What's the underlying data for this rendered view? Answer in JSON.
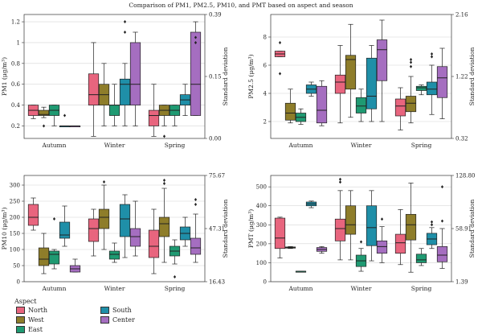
{
  "title": "Comparison of PM1, PM2.5, PM10, and PMT based on aspect and season",
  "legend": {
    "title": "Aspect",
    "items": [
      {
        "name": "North",
        "color": "#e8657e"
      },
      {
        "name": "West",
        "color": "#8e7d2a"
      },
      {
        "name": "East",
        "color": "#1f9a72"
      },
      {
        "name": "South",
        "color": "#1f8fa8"
      },
      {
        "name": "Center",
        "color": "#a56ec0"
      }
    ]
  },
  "chart_data": [
    {
      "type": "box",
      "ylabel": "PM1 (μg/m³)",
      "y2label": "Standard deviation",
      "ylim": [
        0.08,
        1.27
      ],
      "yticks": [
        0.2,
        0.4,
        0.6,
        0.8,
        1.0,
        1.2
      ],
      "y2ticks": [
        "0.39",
        "0.15",
        "0.00"
      ],
      "categories": [
        "Autumn",
        "Winter",
        "Spring"
      ],
      "series": [
        {
          "name": "North",
          "boxes": [
            {
              "whislo": 0.27,
              "q1": 0.3,
              "med": 0.35,
              "q3": 0.4,
              "whishi": 0.4,
              "fliers": []
            },
            {
              "whislo": 0.1,
              "q1": 0.4,
              "med": 0.5,
              "q3": 0.7,
              "whishi": 1.0,
              "fliers": []
            },
            {
              "whislo": 0.1,
              "q1": 0.2,
              "med": 0.3,
              "q3": 0.35,
              "whishi": 0.6,
              "fliers": []
            }
          ]
        },
        {
          "name": "West",
          "boxes": [
            {
              "whislo": 0.28,
              "q1": 0.3,
              "med": 0.31,
              "q3": 0.35,
              "whishi": 0.38,
              "fliers": [
                0.2
              ]
            },
            {
              "whislo": 0.2,
              "q1": 0.4,
              "med": 0.5,
              "q3": 0.6,
              "whishi": 0.8,
              "fliers": []
            },
            {
              "whislo": 0.2,
              "q1": 0.3,
              "med": 0.35,
              "q3": 0.4,
              "whishi": 0.4,
              "fliers": [
                0.1
              ]
            }
          ]
        },
        {
          "name": "East",
          "boxes": [
            {
              "whislo": 0.2,
              "q1": 0.3,
              "med": 0.35,
              "q3": 0.4,
              "whishi": 0.4,
              "fliers": []
            },
            {
              "whislo": 0.2,
              "q1": 0.3,
              "med": 0.4,
              "q3": 0.4,
              "whishi": 0.6,
              "fliers": []
            },
            {
              "whislo": 0.2,
              "q1": 0.3,
              "med": 0.35,
              "q3": 0.4,
              "whishi": 0.4,
              "fliers": []
            }
          ]
        },
        {
          "name": "South",
          "boxes": [
            {
              "whislo": 0.2,
              "q1": 0.2,
              "med": 0.2,
              "q3": 0.2,
              "whishi": 0.2,
              "fliers": [
                0.3
              ]
            },
            {
              "whislo": 0.2,
              "q1": 0.4,
              "med": 0.6,
              "q3": 0.65,
              "whishi": 0.8,
              "fliers": [
                1.1,
                1.2
              ]
            },
            {
              "whislo": 0.3,
              "q1": 0.4,
              "med": 0.45,
              "q3": 0.5,
              "whishi": 0.6,
              "fliers": []
            }
          ]
        },
        {
          "name": "Center",
          "boxes": [
            {
              "whislo": 0.2,
              "q1": 0.2,
              "med": 0.2,
              "q3": 0.2,
              "whishi": 0.2,
              "fliers": []
            },
            {
              "whislo": 0.2,
              "q1": 0.4,
              "med": 0.6,
              "q3": 1.0,
              "whishi": 1.1,
              "fliers": []
            },
            {
              "whislo": 0.3,
              "q1": 0.3,
              "med": 0.6,
              "q3": 1.1,
              "whishi": 1.2,
              "fliers": [
                1.0,
                1.05
              ]
            }
          ]
        }
      ]
    },
    {
      "type": "box",
      "ylabel": "PM2.5 (μg/m³)",
      "y2label": "Standard deviation",
      "ylim": [
        0.8,
        9.6
      ],
      "yticks": [
        2,
        4,
        6,
        8
      ],
      "y2ticks": [
        "2.16",
        "1.22",
        "0.32"
      ],
      "categories": [
        "Autumn",
        "Winter",
        "Spring"
      ],
      "series": [
        {
          "name": "North",
          "boxes": [
            {
              "whislo": 6.6,
              "q1": 6.6,
              "med": 6.8,
              "q3": 7.0,
              "whishi": 7.0,
              "fliers": [
                7.6,
                5.4
              ]
            },
            {
              "whislo": 1.9,
              "q1": 4.0,
              "med": 4.8,
              "q3": 5.3,
              "whishi": 7.4,
              "fliers": []
            },
            {
              "whislo": 1.4,
              "q1": 2.4,
              "med": 3.1,
              "q3": 3.6,
              "whishi": 4.4,
              "fliers": []
            }
          ]
        },
        {
          "name": "West",
          "boxes": [
            {
              "whislo": 1.9,
              "q1": 2.1,
              "med": 2.6,
              "q3": 3.3,
              "whishi": 4.3,
              "fliers": []
            },
            {
              "whislo": 2.3,
              "q1": 4.3,
              "med": 6.4,
              "q3": 6.7,
              "whishi": 8.9,
              "fliers": []
            },
            {
              "whislo": 1.9,
              "q1": 2.7,
              "med": 3.3,
              "q3": 3.8,
              "whishi": 5.2,
              "fliers": [
                5.9,
                6.2,
                6.4
              ]
            }
          ]
        },
        {
          "name": "East",
          "boxes": [
            {
              "whislo": 1.8,
              "q1": 2.0,
              "med": 2.3,
              "q3": 2.6,
              "whishi": 2.9,
              "fliers": []
            },
            {
              "whislo": 2.0,
              "q1": 2.6,
              "med": 3.1,
              "q3": 3.7,
              "whishi": 4.3,
              "fliers": []
            },
            {
              "whislo": 3.9,
              "q1": 4.2,
              "med": 4.4,
              "q3": 4.5,
              "whishi": 4.6,
              "fliers": []
            }
          ]
        },
        {
          "name": "South",
          "boxes": [
            {
              "whislo": 3.8,
              "q1": 4.0,
              "med": 4.3,
              "q3": 4.6,
              "whishi": 4.8,
              "fliers": []
            },
            {
              "whislo": 2.0,
              "q1": 2.9,
              "med": 3.8,
              "q3": 6.5,
              "whishi": 7.4,
              "fliers": []
            },
            {
              "whislo": 2.5,
              "q1": 3.9,
              "med": 4.3,
              "q3": 4.8,
              "whishi": 6.0,
              "fliers": [
                6.6,
                6.8
              ]
            }
          ]
        },
        {
          "name": "Center",
          "boxes": [
            {
              "whislo": 1.7,
              "q1": 1.9,
              "med": 2.8,
              "q3": 4.5,
              "whishi": 4.9,
              "fliers": []
            },
            {
              "whislo": 2.0,
              "q1": 4.9,
              "med": 7.1,
              "q3": 7.8,
              "whishi": 9.2,
              "fliers": []
            },
            {
              "whislo": 2.2,
              "q1": 3.7,
              "med": 5.1,
              "q3": 5.9,
              "whishi": 7.2,
              "fliers": []
            }
          ]
        }
      ]
    },
    {
      "type": "box",
      "ylabel": "PM10 (μg/m³)",
      "y2label": "Standard deviation",
      "ylim": [
        0,
        330
      ],
      "yticks": [
        0,
        50,
        100,
        150,
        200,
        250,
        300
      ],
      "y2ticks": [
        "75.67",
        "47.31",
        "16.43"
      ],
      "categories": [
        "Autumn",
        "Winter",
        "Spring"
      ],
      "series": [
        {
          "name": "North",
          "boxes": [
            {
              "whislo": 160,
              "q1": 175,
              "med": 200,
              "q3": 240,
              "whishi": 260,
              "fliers": []
            },
            {
              "whislo": 80,
              "q1": 125,
              "med": 165,
              "q3": 195,
              "whishi": 225,
              "fliers": []
            },
            {
              "whislo": 25,
              "q1": 75,
              "med": 110,
              "q3": 160,
              "whishi": 225,
              "fliers": []
            }
          ]
        },
        {
          "name": "West",
          "boxes": [
            {
              "whislo": 25,
              "q1": 50,
              "med": 70,
              "q3": 105,
              "whishi": 150,
              "fliers": []
            },
            {
              "whislo": 100,
              "q1": 165,
              "med": 200,
              "q3": 225,
              "whishi": 300,
              "fliers": [
                310
              ]
            },
            {
              "whislo": 60,
              "q1": 140,
              "med": 180,
              "q3": 200,
              "whishi": 290,
              "fliers": [
                305,
                315
              ]
            }
          ]
        },
        {
          "name": "East",
          "boxes": [
            {
              "whislo": 40,
              "q1": 55,
              "med": 85,
              "q3": 95,
              "whishi": 100,
              "fliers": [
                195
              ]
            },
            {
              "whislo": 60,
              "q1": 70,
              "med": 85,
              "q3": 95,
              "whishi": 120,
              "fliers": []
            },
            {
              "whislo": 55,
              "q1": 80,
              "med": 95,
              "q3": 110,
              "whishi": 130,
              "fliers": [
                15
              ]
            }
          ]
        },
        {
          "name": "South",
          "boxes": [
            {
              "whislo": 110,
              "q1": 135,
              "med": 145,
              "q3": 185,
              "whishi": 235,
              "fliers": []
            },
            {
              "whislo": 75,
              "q1": 140,
              "med": 195,
              "q3": 240,
              "whishi": 270,
              "fliers": []
            },
            {
              "whislo": 110,
              "q1": 130,
              "med": 150,
              "q3": 170,
              "whishi": 200,
              "fliers": []
            }
          ]
        },
        {
          "name": "Center",
          "boxes": [
            {
              "whislo": 30,
              "q1": 30,
              "med": 40,
              "q3": 50,
              "whishi": 70,
              "fliers": []
            },
            {
              "whislo": 80,
              "q1": 110,
              "med": 140,
              "q3": 165,
              "whishi": 250,
              "fliers": []
            },
            {
              "whislo": 60,
              "q1": 85,
              "med": 105,
              "q3": 135,
              "whishi": 210,
              "fliers": [
                240,
                255
              ]
            }
          ]
        }
      ]
    },
    {
      "type": "box",
      "ylabel": "PMT (μg/m³)",
      "y2label": "Standard deviation",
      "ylim": [
        0,
        560
      ],
      "yticks": [
        0,
        100,
        200,
        300,
        400,
        500
      ],
      "y2ticks": [
        "128.80",
        "58.91",
        "1.39"
      ],
      "categories": [
        "Autumn",
        "Winter",
        "Spring"
      ],
      "series": [
        {
          "name": "North",
          "boxes": [
            {
              "whislo": 125,
              "q1": 175,
              "med": 230,
              "q3": 335,
              "whishi": 340,
              "fliers": []
            },
            {
              "whislo": 115,
              "q1": 215,
              "med": 280,
              "q3": 330,
              "whishi": 480,
              "fliers": [
                525,
                540
              ]
            },
            {
              "whislo": 90,
              "q1": 150,
              "med": 205,
              "q3": 250,
              "whishi": 380,
              "fliers": []
            }
          ]
        },
        {
          "name": "West",
          "boxes": [
            {
              "whislo": 175,
              "q1": 177,
              "med": 180,
              "q3": 183,
              "whishi": 185,
              "fliers": []
            },
            {
              "whislo": 115,
              "q1": 250,
              "med": 300,
              "q3": 400,
              "whishi": 480,
              "fliers": []
            },
            {
              "whislo": 50,
              "q1": 220,
              "med": 300,
              "q3": 355,
              "whishi": 520,
              "fliers": []
            }
          ]
        },
        {
          "name": "East",
          "boxes": [
            {
              "whislo": 55,
              "q1": 55,
              "med": 55,
              "q3": 55,
              "whishi": 55,
              "fliers": []
            },
            {
              "whislo": 55,
              "q1": 80,
              "med": 110,
              "q3": 140,
              "whishi": 175,
              "fliers": [
                210
              ]
            },
            {
              "whislo": 85,
              "q1": 100,
              "med": 115,
              "q3": 145,
              "whishi": 175,
              "fliers": []
            }
          ]
        },
        {
          "name": "South",
          "boxes": [
            {
              "whislo": 390,
              "q1": 400,
              "med": 410,
              "q3": 420,
              "whishi": 425,
              "fliers": []
            },
            {
              "whislo": 110,
              "q1": 190,
              "med": 285,
              "q3": 400,
              "whishi": 480,
              "fliers": []
            },
            {
              "whislo": 175,
              "q1": 195,
              "med": 225,
              "q3": 255,
              "whishi": 285,
              "fliers": [
                300,
                315
              ]
            }
          ]
        },
        {
          "name": "Center",
          "boxes": [
            {
              "whislo": 150,
              "q1": 160,
              "med": 170,
              "q3": 180,
              "whishi": 185,
              "fliers": []
            },
            {
              "whislo": 100,
              "q1": 150,
              "med": 185,
              "q3": 215,
              "whishi": 290,
              "fliers": [
                330
              ]
            },
            {
              "whislo": 70,
              "q1": 105,
              "med": 140,
              "q3": 185,
              "whishi": 280,
              "fliers": [
                320,
                500
              ]
            }
          ]
        }
      ]
    }
  ]
}
